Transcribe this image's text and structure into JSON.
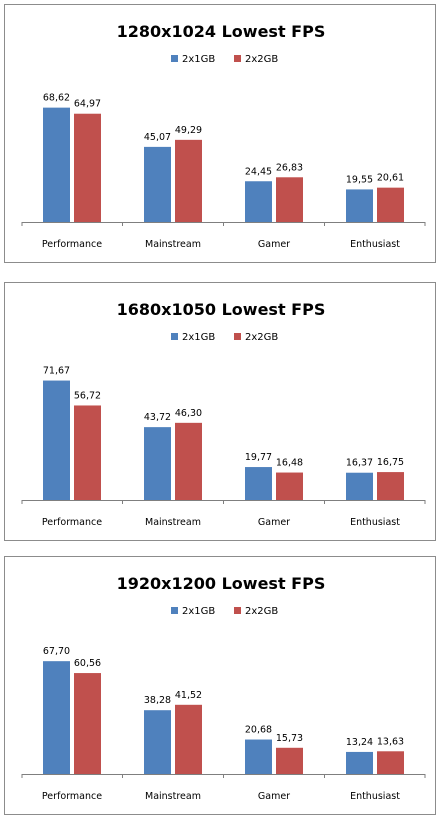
{
  "colors": {
    "series_1": "#4f81bd",
    "series_2": "#c0504d",
    "axis": "#7f7f7f"
  },
  "chart_data": [
    {
      "type": "bar",
      "title": "1280x1024 Lowest FPS",
      "categories": [
        "Performance",
        "Mainstream",
        "Gamer",
        "Enthusiast"
      ],
      "series": [
        {
          "name": "2x1GB",
          "values": [
            68.62,
            45.07,
            24.45,
            19.55
          ],
          "labels": [
            "68,62",
            "45,07",
            "24,45",
            "19,55"
          ]
        },
        {
          "name": "2x2GB",
          "values": [
            64.97,
            49.29,
            26.83,
            20.61
          ],
          "labels": [
            "64,97",
            "49,29",
            "26,83",
            "20,61"
          ]
        }
      ],
      "ylim": [
        0,
        72
      ],
      "legend": "top",
      "grid": false
    },
    {
      "type": "bar",
      "title": "1680x1050 Lowest FPS",
      "categories": [
        "Performance",
        "Mainstream",
        "Gamer",
        "Enthusiast"
      ],
      "series": [
        {
          "name": "2x1GB",
          "values": [
            71.67,
            43.72,
            19.77,
            16.37
          ],
          "labels": [
            "71,67",
            "43,72",
            "19,77",
            "16,37"
          ]
        },
        {
          "name": "2x2GB",
          "values": [
            56.72,
            46.3,
            16.48,
            16.75
          ],
          "labels": [
            "56,72",
            "46,30",
            "16,48",
            "16,75"
          ]
        }
      ],
      "ylim": [
        0,
        72
      ],
      "legend": "top",
      "grid": false
    },
    {
      "type": "bar",
      "title": "1920x1200 Lowest FPS",
      "categories": [
        "Performance",
        "Mainstream",
        "Gamer",
        "Enthusiast"
      ],
      "series": [
        {
          "name": "2x1GB",
          "values": [
            67.7,
            38.28,
            20.68,
            13.24
          ],
          "labels": [
            "67,70",
            "38,28",
            "20,68",
            "13,24"
          ]
        },
        {
          "name": "2x2GB",
          "values": [
            60.56,
            41.52,
            15.73,
            13.63
          ],
          "labels": [
            "60,56",
            "41,52",
            "15,73",
            "13,63"
          ]
        }
      ],
      "ylim": [
        0,
        72
      ],
      "legend": "top",
      "grid": false
    }
  ]
}
